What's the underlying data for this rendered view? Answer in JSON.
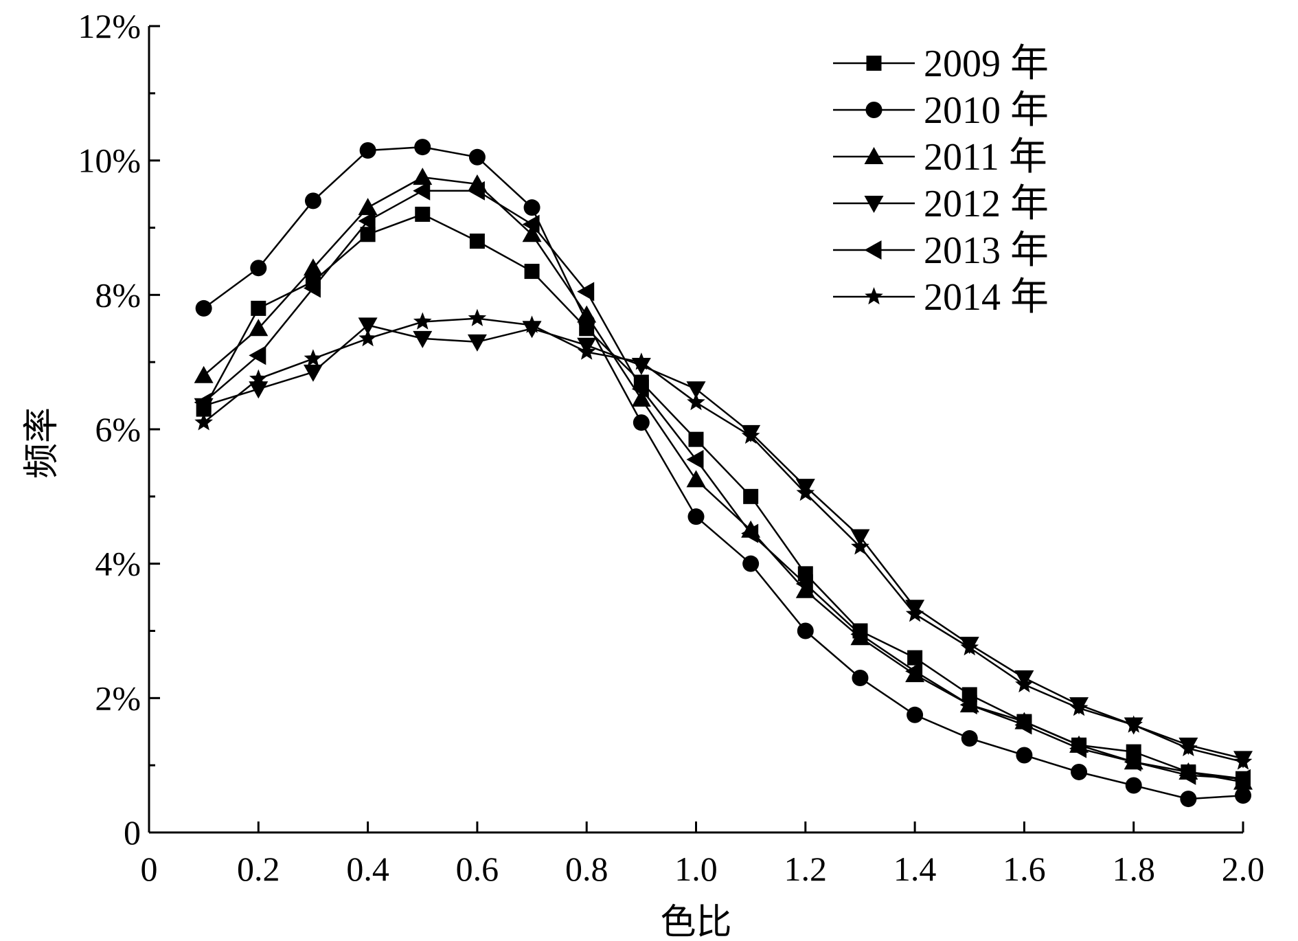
{
  "chart_data": {
    "type": "line",
    "xlabel": "色比",
    "ylabel": "频率",
    "xlim": [
      0,
      2.0
    ],
    "ylim": [
      0,
      12
    ],
    "x_ticks": [
      {
        "value": 0,
        "label": "0"
      },
      {
        "value": 0.2,
        "label": "0.2"
      },
      {
        "value": 0.4,
        "label": "0.4"
      },
      {
        "value": 0.6,
        "label": "0.6"
      },
      {
        "value": 0.8,
        "label": "0.8"
      },
      {
        "value": 1.0,
        "label": "1.0"
      },
      {
        "value": 1.2,
        "label": "1.2"
      },
      {
        "value": 1.4,
        "label": "1.4"
      },
      {
        "value": 1.6,
        "label": "1.6"
      },
      {
        "value": 1.8,
        "label": "1.8"
      },
      {
        "value": 2.0,
        "label": "2.0"
      }
    ],
    "y_ticks": [
      {
        "value": 0,
        "label": "0"
      },
      {
        "value": 2,
        "label": "2%"
      },
      {
        "value": 4,
        "label": "4%"
      },
      {
        "value": 6,
        "label": "6%"
      },
      {
        "value": 8,
        "label": "8%"
      },
      {
        "value": 10,
        "label": "10%"
      },
      {
        "value": 12,
        "label": "12%"
      }
    ],
    "y_minor_step": 1,
    "grid": false,
    "legend_position": "top-right",
    "x": [
      0.1,
      0.2,
      0.3,
      0.4,
      0.5,
      0.6,
      0.7,
      0.8,
      0.9,
      1.0,
      1.1,
      1.2,
      1.3,
      1.4,
      1.5,
      1.6,
      1.7,
      1.8,
      1.9,
      2.0
    ],
    "series": [
      {
        "name": "2009 年",
        "marker": "square",
        "values": [
          6.3,
          7.8,
          8.2,
          8.9,
          9.2,
          8.8,
          8.35,
          7.5,
          6.7,
          5.85,
          5.0,
          3.85,
          3.0,
          2.6,
          2.05,
          1.65,
          1.3,
          1.2,
          0.9,
          0.8
        ]
      },
      {
        "name": "2010 年",
        "marker": "circle",
        "values": [
          7.8,
          8.4,
          9.4,
          10.15,
          10.2,
          10.05,
          9.3,
          7.6,
          6.1,
          4.7,
          4.0,
          3.0,
          2.3,
          1.75,
          1.4,
          1.15,
          0.9,
          0.7,
          0.5,
          0.55
        ]
      },
      {
        "name": "2011 年",
        "marker": "triangle-up",
        "values": [
          6.8,
          7.5,
          8.4,
          9.3,
          9.75,
          9.65,
          8.9,
          7.7,
          6.45,
          5.25,
          4.5,
          3.6,
          2.9,
          2.35,
          1.9,
          1.65,
          1.3,
          1.05,
          0.9,
          0.75
        ]
      },
      {
        "name": "2012 年",
        "marker": "triangle-down",
        "values": [
          6.35,
          6.6,
          6.85,
          7.55,
          7.35,
          7.3,
          7.5,
          7.25,
          6.95,
          6.6,
          5.95,
          5.15,
          4.4,
          3.35,
          2.8,
          2.3,
          1.9,
          1.6,
          1.3,
          1.1
        ]
      },
      {
        "name": "2013 年",
        "marker": "triangle-left",
        "values": [
          6.4,
          7.1,
          8.1,
          9.1,
          9.55,
          9.55,
          9.05,
          8.05,
          6.6,
          5.55,
          4.45,
          3.7,
          2.95,
          2.4,
          1.9,
          1.6,
          1.25,
          1.05,
          0.85,
          0.8
        ]
      },
      {
        "name": "2014 年",
        "marker": "star",
        "values": [
          6.1,
          6.75,
          7.05,
          7.35,
          7.6,
          7.65,
          7.55,
          7.15,
          7.0,
          6.4,
          5.9,
          5.05,
          4.25,
          3.25,
          2.75,
          2.2,
          1.85,
          1.6,
          1.25,
          1.05
        ]
      }
    ]
  }
}
